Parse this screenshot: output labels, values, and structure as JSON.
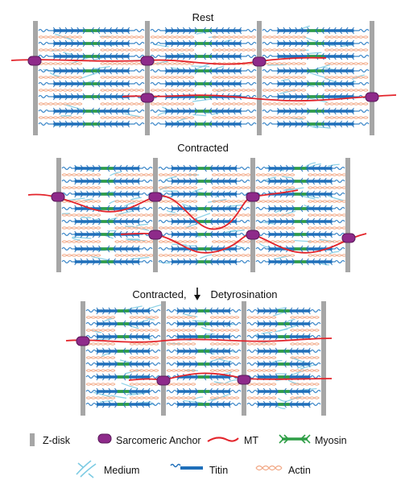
{
  "panels": [
    {
      "id": "rest",
      "title": "Rest",
      "title_arrow": false
    },
    {
      "id": "contracted",
      "title": "Contracted",
      "title_arrow": false
    },
    {
      "id": "detyrosination",
      "title_prefix": "Contracted,",
      "title_suffix": "Detyrosination",
      "title_arrow": true
    }
  ],
  "legend": [
    {
      "key": "zdisk",
      "icon": "z-disk-bar-icon",
      "label": "Z-disk"
    },
    {
      "key": "anchor",
      "icon": "sarcomeric-anchor-icon",
      "label": "Sarcomeric Anchor"
    },
    {
      "key": "mt",
      "icon": "microtubule-line-icon",
      "label": "MT"
    },
    {
      "key": "myosin",
      "icon": "myosin-icon",
      "label": "Myosin"
    },
    {
      "key": "medium",
      "icon": "medium-strands-icon",
      "label": "Medium"
    },
    {
      "key": "titin",
      "icon": "titin-icon",
      "label": "Titin"
    },
    {
      "key": "actin",
      "icon": "actin-helix-icon",
      "label": "Actin"
    }
  ],
  "colors": {
    "zdisk": "#a6a6a6",
    "anchor": "#8e2a8a",
    "anchor_stroke": "#5b1a5a",
    "mt": "#e3242b",
    "myosin": "#2e9e46",
    "titin": "#1f6fba",
    "titin_thin": "#3a86c8",
    "medium": "#7ccbe3",
    "actin": "#f2a987"
  }
}
